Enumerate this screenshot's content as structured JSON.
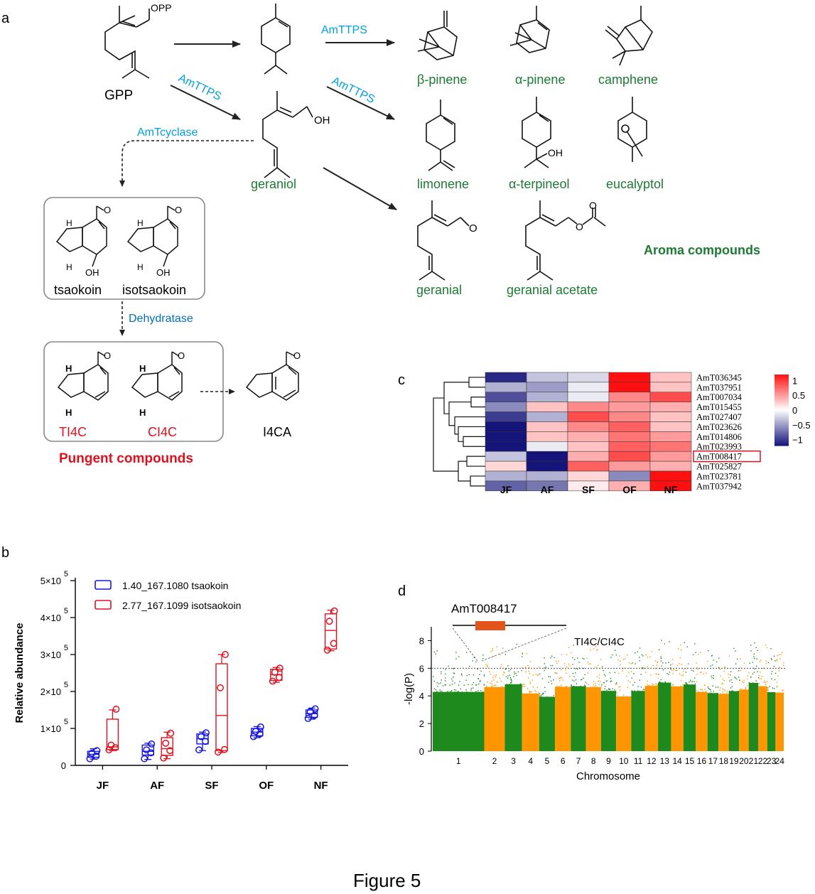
{
  "figure_title": "Figure 5",
  "panel_labels": {
    "a": "a",
    "b": "b",
    "c": "c",
    "d": "d"
  },
  "colors": {
    "enzyme": "#00a0e0",
    "enzyme_dark": "#0070c0",
    "aroma": "#1d7a35",
    "pungent": "#e0101e",
    "black": "#000000",
    "green_chr": "#1e8a1e",
    "orange_chr": "#ff9500",
    "gene_box": "#e3541d",
    "highlight": "#e0101e"
  },
  "panel_a": {
    "gpp_label": "GPP",
    "opp_label": "OPP",
    "oh_label": "OH",
    "enzymes": {
      "ttps_1": "AmTTPS",
      "ttps_2": "AmTTPS",
      "ttps_3": "AmTTPS",
      "cyclase": "AmTcyclase",
      "dehydratase": "Dehydratase"
    },
    "aroma_compounds": {
      "beta_pinene": "β-pinene",
      "alpha_pinene": "α-pinene",
      "camphene": "camphene",
      "limonene": "limonene",
      "alpha_terpineol": "α-terpineol",
      "eucalyptol": "eucalyptol",
      "geraniol": "geraniol",
      "geranial": "geranial",
      "geranial_acetate": "geranial acetate"
    },
    "aroma_group": "Aroma compounds",
    "tsaokoin": "tsaokoin",
    "isotsaokoin": "isotsaokoin",
    "h_label": "H",
    "pungent": {
      "ti4c": "TI4C",
      "ci4c": "CI4C",
      "group": "Pungent compounds"
    },
    "i4ca": "I4CA"
  },
  "chart_data": [
    {
      "type": "box",
      "panel": "b",
      "ylabel": "Relative abundance",
      "ylim": [
        0,
        500000
      ],
      "yticks": [
        {
          "value": 0,
          "label": "0",
          "exp": ""
        },
        {
          "value": 100000,
          "label": "1×10",
          "exp": "5"
        },
        {
          "value": 200000,
          "label": "2×10",
          "exp": "5"
        },
        {
          "value": 300000,
          "label": "3×10",
          "exp": "5"
        },
        {
          "value": 400000,
          "label": "4×10",
          "exp": "5"
        },
        {
          "value": 500000,
          "label": "5×10",
          "exp": "5"
        }
      ],
      "categories": [
        "JF",
        "AF",
        "SF",
        "OF",
        "NF"
      ],
      "series": [
        {
          "name": "1.40_167.1080 tsaokoin",
          "color": "#1414e0",
          "boxes": [
            {
              "min": 17000,
              "q1": 22000,
              "median": 30000,
              "q3": 38000,
              "max": 45000,
              "points": [
                18000,
                25000,
                33000,
                40000
              ]
            },
            {
              "min": 16000,
              "q1": 28000,
              "median": 38000,
              "q3": 55000,
              "max": 60000,
              "points": [
                18000,
                34000,
                42000,
                58000
              ]
            },
            {
              "min": 40000,
              "q1": 58000,
              "median": 72000,
              "q3": 85000,
              "max": 90000,
              "points": [
                42000,
                65000,
                78000,
                88000
              ]
            },
            {
              "min": 75000,
              "q1": 80000,
              "median": 90000,
              "q3": 100000,
              "max": 105000,
              "points": [
                78000,
                85000,
                92000,
                104000
              ]
            },
            {
              "min": 125000,
              "q1": 130000,
              "median": 140000,
              "q3": 150000,
              "max": 155000,
              "points": [
                127000,
                135000,
                145000,
                153000
              ]
            }
          ]
        },
        {
          "name": "2.77_167.1099 isotsaokoin",
          "color": "#e0101e",
          "boxes": [
            {
              "min": 40000,
              "q1": 43000,
              "median": 50000,
              "q3": 125000,
              "max": 150000,
              "points": [
                42000,
                48000,
                55000,
                152000
              ]
            },
            {
              "min": 18000,
              "q1": 27000,
              "median": 45000,
              "q3": 75000,
              "max": 90000,
              "points": [
                20000,
                40000,
                60000,
                87000
              ]
            },
            {
              "min": 35000,
              "q1": 40000,
              "median": 135000,
              "q3": 275000,
              "max": 300000,
              "points": [
                36000,
                43000,
                210000,
                300000
              ]
            },
            {
              "min": 225000,
              "q1": 230000,
              "median": 245000,
              "q3": 260000,
              "max": 265000,
              "points": [
                228000,
                238000,
                252000,
                263000
              ]
            },
            {
              "min": 310000,
              "q1": 315000,
              "median": 365000,
              "q3": 410000,
              "max": 420000,
              "points": [
                312000,
                330000,
                390000,
                418000
              ]
            }
          ]
        }
      ]
    },
    {
      "type": "heatmap",
      "panel": "c",
      "columns": [
        "JF",
        "AF",
        "SF",
        "OF",
        "NF"
      ],
      "rows": [
        "AmT036345",
        "AmT037951",
        "AmT007034",
        "AmT015455",
        "AmT027407",
        "AmT023626",
        "AmT014806",
        "AmT023993",
        "AmT008417",
        "AmT025827",
        "AmT023781",
        "AmT037942"
      ],
      "highlighted_row": "AmT008417",
      "values": [
        [
          -1.1,
          -0.3,
          -0.2,
          1.3,
          0.3
        ],
        [
          -0.4,
          -0.5,
          -0.1,
          1.3,
          0.3
        ],
        [
          -0.9,
          -0.4,
          -0.1,
          0.6,
          0.9
        ],
        [
          -0.6,
          0.3,
          0.6,
          0.5,
          0.4
        ],
        [
          -1.0,
          -0.4,
          0.9,
          0.6,
          0.3
        ],
        [
          -1.3,
          0.3,
          0.6,
          0.8,
          0.3
        ],
        [
          -1.3,
          0.3,
          0.4,
          0.7,
          0.5
        ],
        [
          -1.2,
          -0.1,
          0.3,
          0.8,
          0.7
        ],
        [
          -0.3,
          -1.5,
          0.4,
          0.9,
          0.5
        ],
        [
          0.2,
          -1.5,
          0.8,
          0.5,
          0.4
        ],
        [
          -0.4,
          -0.4,
          0.2,
          -0.6,
          1.3
        ],
        [
          -0.8,
          -0.7,
          0.1,
          0.4,
          1.3
        ]
      ],
      "color_scale": {
        "min": -1.2,
        "max": 1.2,
        "low": "#14147a",
        "mid": "#ffffff",
        "high": "#ff1010"
      },
      "legend_ticks": [
        "1",
        "0.5",
        "0",
        "−0.5",
        "−1"
      ]
    },
    {
      "type": "manhattan",
      "panel": "d",
      "ylabel": "-log(P)",
      "xlabel": "Chromosome",
      "ylim": [
        0,
        9
      ],
      "yticks": [
        "0",
        "2",
        "4",
        "6",
        "8"
      ],
      "threshold": 6,
      "chromosomes": [
        "1",
        "2",
        "3",
        "4",
        "5",
        "6",
        "7",
        "8",
        "9",
        "10",
        "11",
        "12",
        "13",
        "14",
        "15",
        "16",
        "17",
        "18",
        "19",
        "20",
        "21",
        "22",
        "23",
        "24"
      ],
      "gene_label": "AmT008417",
      "locus_label": "TI4C/CI4C"
    }
  ]
}
